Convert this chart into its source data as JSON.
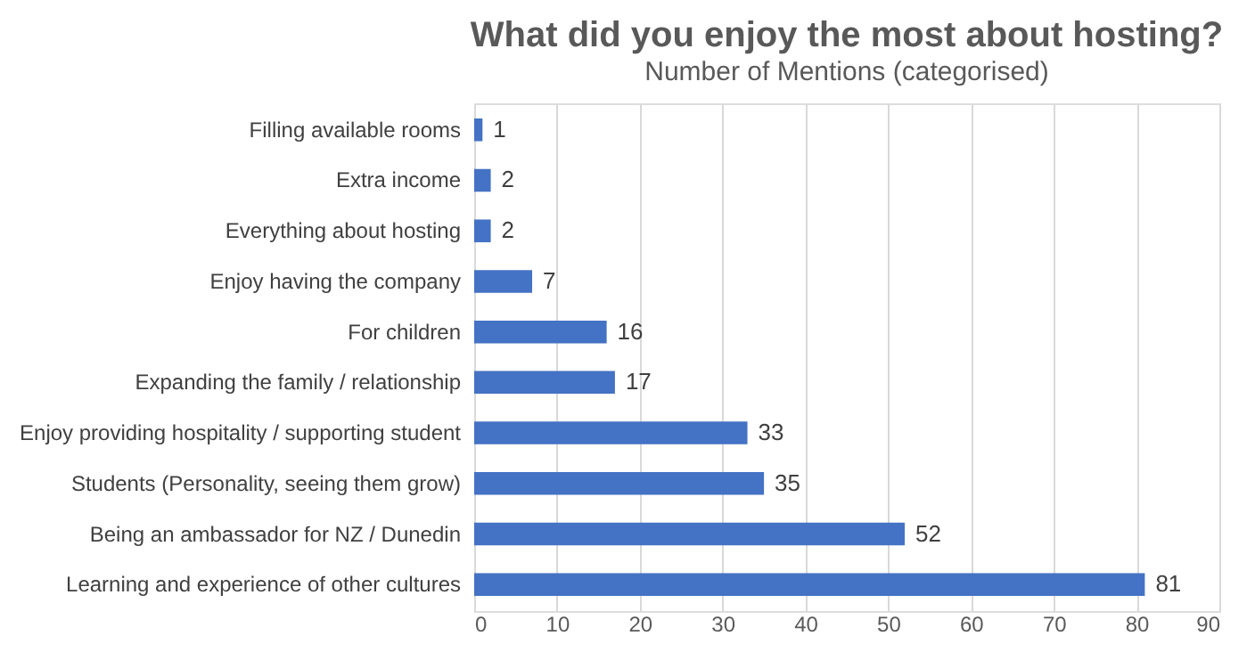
{
  "chart_data": {
    "type": "bar",
    "orientation": "horizontal",
    "title": "What did you enjoy the most about hosting?",
    "subtitle": "Number of Mentions (categorised)",
    "categories": [
      "Filling available rooms",
      "Extra income",
      "Everything about hosting",
      "Enjoy having the company",
      "For children",
      "Expanding the family / relationship",
      "Enjoy providing hospitality / supporting student",
      "Students (Personality, seeing them grow)",
      "Being an ambassador for NZ / Dunedin",
      "Learning and experience of other cultures"
    ],
    "values": [
      1,
      2,
      2,
      7,
      16,
      17,
      33,
      35,
      52,
      81
    ],
    "color": "#4472c4",
    "xlim": [
      0,
      90
    ],
    "xticks": [
      0,
      10,
      20,
      30,
      40,
      50,
      60,
      70,
      80,
      90
    ],
    "grid": "x",
    "data_labels": true
  }
}
